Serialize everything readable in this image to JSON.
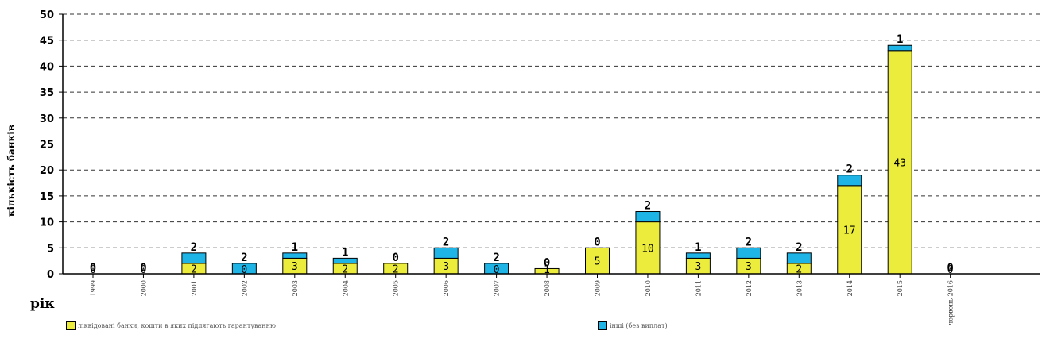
{
  "chart_data": {
    "type": "bar",
    "stacked": true,
    "ylabel": "кількість банків",
    "xlabel": "рік",
    "ylim": [
      0,
      50
    ],
    "yticks": [
      0,
      5,
      10,
      15,
      20,
      25,
      30,
      35,
      40,
      45,
      50
    ],
    "grid": true,
    "legend_position": "bottom",
    "categories": [
      "1999",
      "2000",
      "2001",
      "2002",
      "2003",
      "2004",
      "2005",
      "2006",
      "2007",
      "2008",
      "2009",
      "2010",
      "2011",
      "2012",
      "2013",
      "2014",
      "2015",
      "червень 2016"
    ],
    "series": [
      {
        "name": "ліквідовані банки, кошти в яких підлягають гарантуванню",
        "color": "#ecec3c",
        "values": [
          0,
          0,
          2,
          0,
          3,
          2,
          2,
          3,
          0,
          1,
          5,
          10,
          3,
          3,
          2,
          17,
          43,
          0
        ],
        "labels": [
          "0",
          "0",
          "2",
          "0",
          "3",
          "2",
          "2",
          "3",
          "0",
          "1",
          "5",
          "10",
          "3",
          "3",
          "2",
          "17",
          "43",
          "0"
        ]
      },
      {
        "name": "інші (без виплат)",
        "color": "#1eb4e6",
        "values": [
          0,
          0,
          2,
          2,
          1,
          1,
          0,
          2,
          2,
          0,
          0,
          2,
          1,
          2,
          2,
          2,
          1,
          0
        ],
        "labels": [
          "0",
          "0",
          "2",
          "2",
          "1",
          "1",
          "0",
          "2",
          "2",
          "0",
          "0",
          "2",
          "1",
          "2",
          "2",
          "2",
          "1",
          "0"
        ]
      }
    ]
  }
}
